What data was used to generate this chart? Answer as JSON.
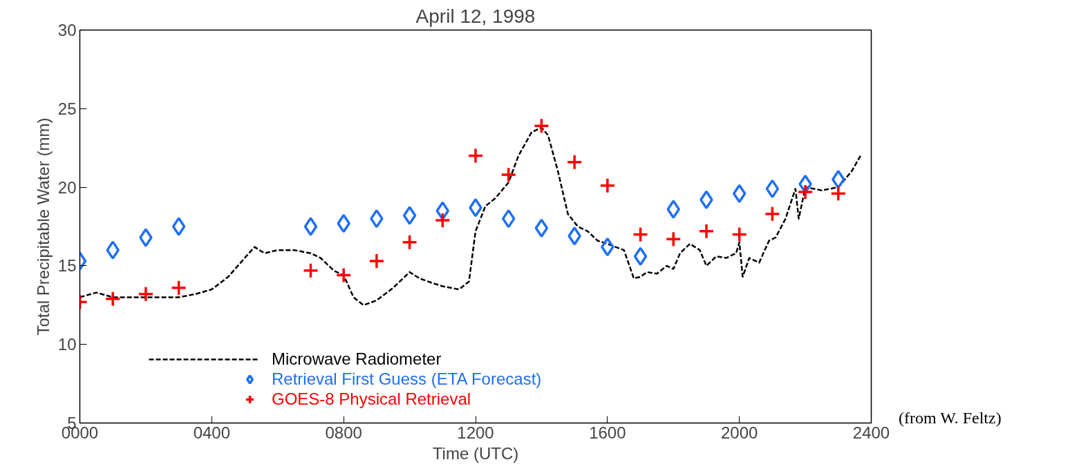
{
  "chart_data": {
    "type": "line",
    "title": "April 12, 1998",
    "xlabel": "Time (UTC)",
    "ylabel": "Total Precipitable Water (mm)",
    "annotations": [
      "(from W. Feltz)"
    ],
    "xlim": [
      0,
      2400
    ],
    "ylim": [
      5,
      30
    ],
    "xticks": [
      {
        "value": 0,
        "label": "0000"
      },
      {
        "value": 400,
        "label": "0400"
      },
      {
        "value": 800,
        "label": "0800"
      },
      {
        "value": 1200,
        "label": "1200"
      },
      {
        "value": 1600,
        "label": "1600"
      },
      {
        "value": 2000,
        "label": "2000"
      },
      {
        "value": 2400,
        "label": "2400"
      }
    ],
    "yticks": [
      5,
      10,
      15,
      20,
      25,
      30
    ],
    "grid": false,
    "legend": "bottom left",
    "series": [
      {
        "name": "Microwave Radiometer",
        "line_style": "dashed",
        "marker": "none",
        "color": "#000000",
        "x": [
          0,
          50,
          100,
          200,
          300,
          350,
          400,
          450,
          500,
          530,
          560,
          600,
          650,
          700,
          730,
          770,
          800,
          830,
          860,
          900,
          950,
          1000,
          1030,
          1070,
          1100,
          1150,
          1180,
          1200,
          1230,
          1260,
          1300,
          1330,
          1370,
          1400,
          1420,
          1450,
          1480,
          1510,
          1540,
          1570,
          1600,
          1650,
          1680,
          1700,
          1720,
          1750,
          1780,
          1800,
          1820,
          1850,
          1880,
          1900,
          1930,
          1960,
          1990,
          2000,
          2010,
          2030,
          2060,
          2090,
          2110,
          2140,
          2170,
          2180,
          2200,
          2250,
          2300,
          2340,
          2370
        ],
        "values": [
          13.0,
          13.3,
          13.0,
          13.0,
          13.0,
          13.2,
          13.5,
          14.3,
          15.5,
          16.2,
          15.8,
          16.0,
          16.0,
          15.8,
          15.5,
          14.7,
          14.4,
          13.0,
          12.5,
          12.8,
          13.6,
          14.6,
          14.2,
          13.9,
          13.7,
          13.5,
          14.0,
          17.2,
          18.8,
          19.3,
          20.3,
          22.0,
          23.5,
          23.8,
          23.3,
          21.0,
          18.3,
          17.5,
          17.2,
          16.6,
          16.4,
          16.0,
          14.2,
          14.3,
          14.6,
          14.5,
          15.0,
          14.8,
          15.8,
          16.4,
          16.0,
          15.0,
          15.6,
          15.5,
          15.8,
          16.5,
          14.3,
          15.5,
          15.2,
          16.6,
          16.8,
          18.0,
          19.9,
          18.0,
          20.0,
          19.8,
          20.0,
          21.0,
          22.1
        ]
      },
      {
        "name": "Retrieval First Guess (ETA Forecast)",
        "type": "scatter",
        "marker": "diamond",
        "color": "#1e6ff5",
        "x": [
          0,
          100,
          200,
          300,
          700,
          800,
          900,
          1000,
          1100,
          1200,
          1300,
          1400,
          1500,
          1600,
          1700,
          1800,
          1900,
          2000,
          2100,
          2200,
          2300
        ],
        "values": [
          15.3,
          16.0,
          16.8,
          17.5,
          17.5,
          17.7,
          18.0,
          18.2,
          18.5,
          18.7,
          18.0,
          17.4,
          16.9,
          16.2,
          15.6,
          18.6,
          19.2,
          19.6,
          19.9,
          20.2,
          20.5
        ]
      },
      {
        "name": "GOES-8 Physical Retrieval",
        "type": "scatter",
        "marker": "cross",
        "color": "#ff0000",
        "x": [
          0,
          100,
          200,
          300,
          700,
          800,
          900,
          1000,
          1100,
          1200,
          1300,
          1400,
          1500,
          1600,
          1700,
          1800,
          1900,
          2000,
          2100,
          2200,
          2300
        ],
        "values": [
          12.7,
          12.9,
          13.2,
          13.6,
          14.7,
          14.4,
          15.3,
          16.5,
          17.9,
          22.0,
          20.8,
          23.9,
          21.6,
          20.1,
          17.0,
          16.7,
          17.2,
          17.0,
          18.3,
          19.7,
          19.6
        ]
      }
    ]
  }
}
